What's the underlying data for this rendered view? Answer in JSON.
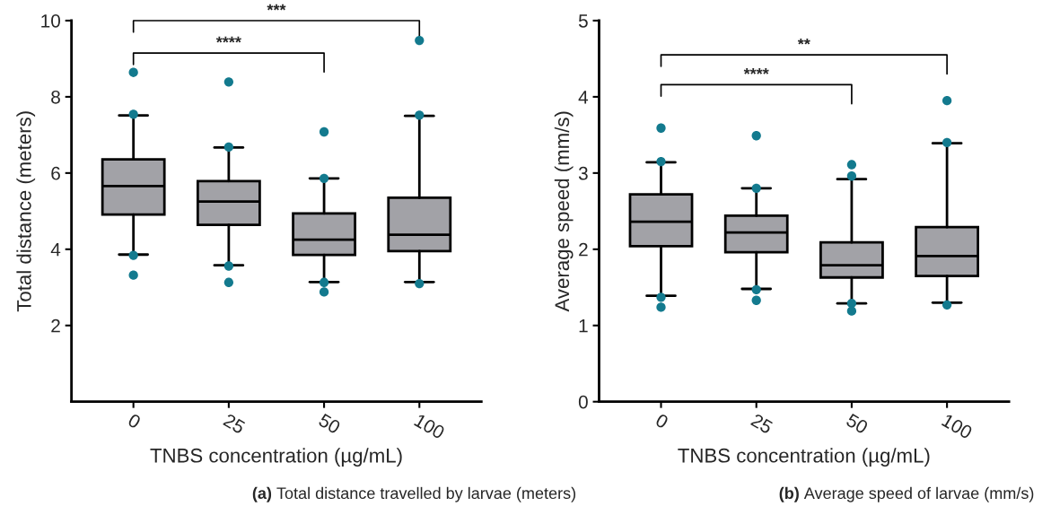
{
  "chart_data": [
    {
      "type": "box",
      "title": "(a) Total distance travelled by larvae (meters)",
      "xlabel": "TNBS concentration (µg/mL)",
      "ylabel": "Total distance (meters)",
      "categories": [
        "0",
        "25",
        "50",
        "100"
      ],
      "series": [
        {
          "type": "box",
          "color": "#a2a2a7",
          "boxes": [
            {
              "low": 3.86,
              "q1": 4.91,
              "median": 5.66,
              "q3": 6.36,
              "high": 7.51
            },
            {
              "low": 3.58,
              "q1": 4.64,
              "median": 5.25,
              "q3": 5.79,
              "high": 6.67
            },
            {
              "low": 3.14,
              "q1": 3.85,
              "median": 4.25,
              "q3": 4.94,
              "high": 5.86
            },
            {
              "low": 3.14,
              "q1": 3.95,
              "median": 4.38,
              "q3": 5.35,
              "high": 7.5
            }
          ]
        },
        {
          "type": "scatter",
          "color": "#137a8e",
          "x": [
            "0",
            "0",
            "0",
            "0",
            "25",
            "25",
            "25",
            "25",
            "50",
            "50",
            "50",
            "50",
            "100",
            "100",
            "100"
          ],
          "values": [
            8.64,
            7.54,
            3.84,
            3.32,
            8.39,
            6.68,
            3.56,
            3.13,
            7.08,
            5.86,
            3.13,
            2.88,
            9.48,
            7.52,
            3.1
          ]
        }
      ],
      "ylim": [
        0,
        10
      ],
      "yticks": [
        2,
        4,
        6,
        8,
        10
      ],
      "grid": false,
      "annotations": [
        "****",
        "***"
      ]
    },
    {
      "type": "box",
      "title": "(b) Average speed of larvae (mm/s)",
      "xlabel": "TNBS concentration (µg/mL)",
      "ylabel": "Average speed (mm/s)",
      "categories": [
        "0",
        "25",
        "50",
        "100"
      ],
      "series": [
        {
          "type": "box",
          "color": "#a2a2a7",
          "boxes": [
            {
              "low": 1.39,
              "q1": 2.04,
              "median": 2.36,
              "q3": 2.72,
              "high": 3.14
            },
            {
              "low": 1.48,
              "q1": 1.96,
              "median": 2.22,
              "q3": 2.44,
              "high": 2.8
            },
            {
              "low": 1.29,
              "q1": 1.63,
              "median": 1.79,
              "q3": 2.09,
              "high": 2.92
            },
            {
              "low": 1.3,
              "q1": 1.65,
              "median": 1.91,
              "q3": 2.29,
              "high": 3.39
            }
          ]
        },
        {
          "type": "scatter",
          "color": "#137a8e",
          "x": [
            "0",
            "0",
            "0",
            "0",
            "25",
            "25",
            "25",
            "25",
            "50",
            "50",
            "50",
            "50",
            "100",
            "100",
            "100"
          ],
          "values": [
            3.59,
            3.15,
            1.37,
            1.24,
            3.49,
            2.8,
            1.47,
            1.33,
            3.11,
            2.96,
            1.29,
            1.19,
            3.95,
            3.4,
            1.27
          ]
        }
      ],
      "ylim": [
        0,
        5
      ],
      "yticks": [
        0,
        1,
        2,
        3,
        4,
        5
      ],
      "grid": false,
      "annotations": [
        "****",
        "**"
      ]
    }
  ]
}
